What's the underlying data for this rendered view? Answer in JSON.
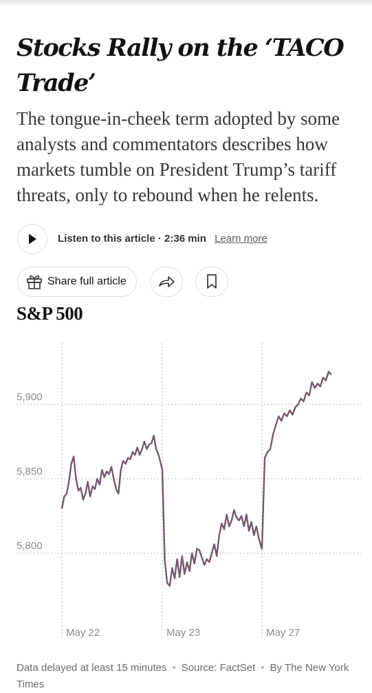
{
  "article": {
    "headline": "Stocks Rally on the ‘TACO Trade’",
    "summary": "The tongue-in-cheek term adopted by some analysts and commentators describes how markets tumble on President Trump’s tariff threats, only to rebound when he relents."
  },
  "audio": {
    "listen_label": "Listen to this article · 2:36 min",
    "learn_more": "Learn more"
  },
  "actions": {
    "share_label": "Share full article"
  },
  "icons": [
    "play-icon",
    "gift-icon",
    "share-arrow-icon",
    "bookmark-icon"
  ],
  "footer": {
    "delay": "Data delayed at least 15 minutes",
    "source": "Source: FactSet",
    "byline": "By The New York Times"
  },
  "colors": {
    "line": "#74586e",
    "grid": "#d0d0d0",
    "text": "#121212"
  },
  "chart_data": {
    "type": "line",
    "title": "S&P 500",
    "x_categories": [
      "May 22",
      "May 23",
      "May 27"
    ],
    "ylim": [
      5770,
      5925
    ],
    "yticks": [
      5800,
      5850,
      5900
    ],
    "ytick_labels": [
      "5,800",
      "5,850",
      "5,900"
    ],
    "grid": true,
    "series": [
      {
        "sessions": [
          [
            5830,
            5838,
            5840,
            5848,
            5860,
            5865,
            5850,
            5842,
            5844,
            5836,
            5840,
            5848,
            5838,
            5845,
            5843,
            5850,
            5846,
            5856,
            5851,
            5855,
            5853,
            5858,
            5850,
            5843,
            5840,
            5856,
            5862,
            5860,
            5864,
            5863,
            5868,
            5866,
            5871,
            5866,
            5870,
            5875,
            5870,
            5873,
            5874,
            5879,
            5870,
            5866,
            5860
          ],
          [
            5856,
            5795,
            5780,
            5778,
            5790,
            5783,
            5796,
            5784,
            5798,
            5786,
            5794,
            5788,
            5800,
            5793,
            5803,
            5802,
            5797,
            5792,
            5796,
            5794,
            5800,
            5806,
            5798,
            5812,
            5820,
            5816,
            5826,
            5818,
            5822,
            5829,
            5824,
            5822,
            5825,
            5818,
            5826,
            5815,
            5821,
            5812,
            5818,
            5810,
            5804
          ],
          [
            5803,
            5864,
            5868,
            5870,
            5880,
            5886,
            5892,
            5889,
            5894,
            5892,
            5896,
            5893,
            5898,
            5900,
            5904,
            5902,
            5908,
            5906,
            5915,
            5911,
            5914,
            5912,
            5918,
            5916,
            5922,
            5920
          ]
        ]
      }
    ]
  }
}
